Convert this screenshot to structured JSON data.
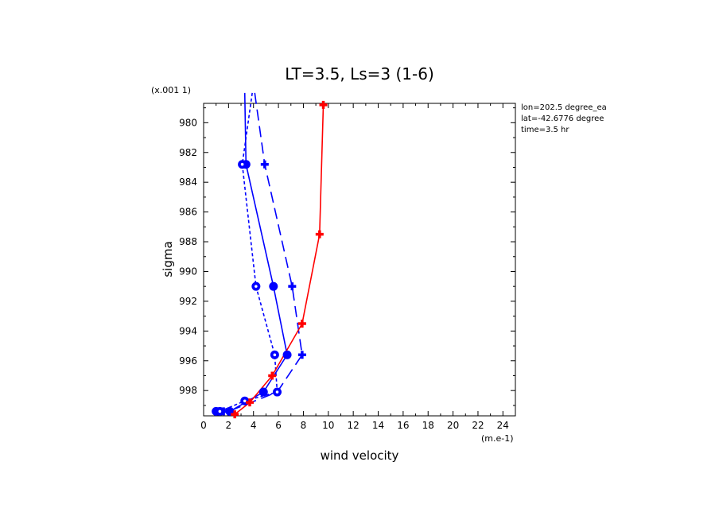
{
  "chart_data": {
    "type": "line",
    "title": "LT=3.5, Ls=3 (1-6)",
    "xlabel": "wind velocity",
    "ylabel": "sigma",
    "x_units": "(m.e-1)",
    "y_scale_note": "(x.001 1)",
    "xlim": [
      0,
      25
    ],
    "ylim": [
      999.7,
      978.7
    ],
    "y_inverted": true,
    "x_ticks": [
      0,
      2,
      4,
      6,
      8,
      10,
      12,
      14,
      16,
      18,
      20,
      22,
      24
    ],
    "y_ticks": [
      980,
      982,
      984,
      986,
      988,
      990,
      992,
      994,
      996,
      998
    ],
    "x_tick_labels": [
      "0",
      "2",
      "4",
      "6",
      "8",
      "10",
      "12",
      "14",
      "16",
      "18",
      "20",
      "22",
      "24"
    ],
    "y_tick_labels": [
      "980",
      "982",
      "984",
      "986",
      "988",
      "990",
      "992",
      "994",
      "996",
      "998"
    ],
    "annotations": [
      "lon=202.5 degree_ea",
      "lat=-42.6776 degree",
      "time=3.5 hr"
    ],
    "series": [
      {
        "color": "#0000ff",
        "dash": "solid",
        "marker": "dot",
        "points": [
          [
            3.3,
            978.0
          ],
          [
            3.4,
            982.8
          ],
          [
            5.6,
            991.0
          ],
          [
            6.7,
            995.6
          ],
          [
            4.8,
            998.1
          ],
          [
            2.1,
            999.4
          ],
          [
            1.0,
            999.4
          ]
        ]
      },
      {
        "color": "#0000ff",
        "dash": "long",
        "marker": "plus",
        "points": [
          [
            4.1,
            978.0
          ],
          [
            4.9,
            982.8
          ],
          [
            7.1,
            991.0
          ],
          [
            7.9,
            995.6
          ],
          [
            5.9,
            998.1
          ],
          [
            2.0,
            999.4
          ],
          [
            1.6,
            999.4
          ]
        ]
      },
      {
        "color": "#0000ff",
        "dash": "short",
        "marker": "ring",
        "points": [
          [
            3.9,
            978.0
          ],
          [
            3.1,
            982.8
          ],
          [
            4.2,
            991.0
          ],
          [
            5.7,
            995.6
          ],
          [
            5.9,
            998.1
          ],
          [
            3.3,
            998.7
          ],
          [
            1.3,
            999.4
          ]
        ]
      },
      {
        "color": "#ff0000",
        "dash": "solid",
        "marker": "plus",
        "points": [
          [
            9.6,
            978.8
          ],
          [
            9.3,
            987.5
          ],
          [
            7.9,
            993.5
          ],
          [
            5.5,
            997.0
          ],
          [
            3.7,
            998.8
          ],
          [
            2.5,
            999.6
          ]
        ]
      }
    ]
  }
}
